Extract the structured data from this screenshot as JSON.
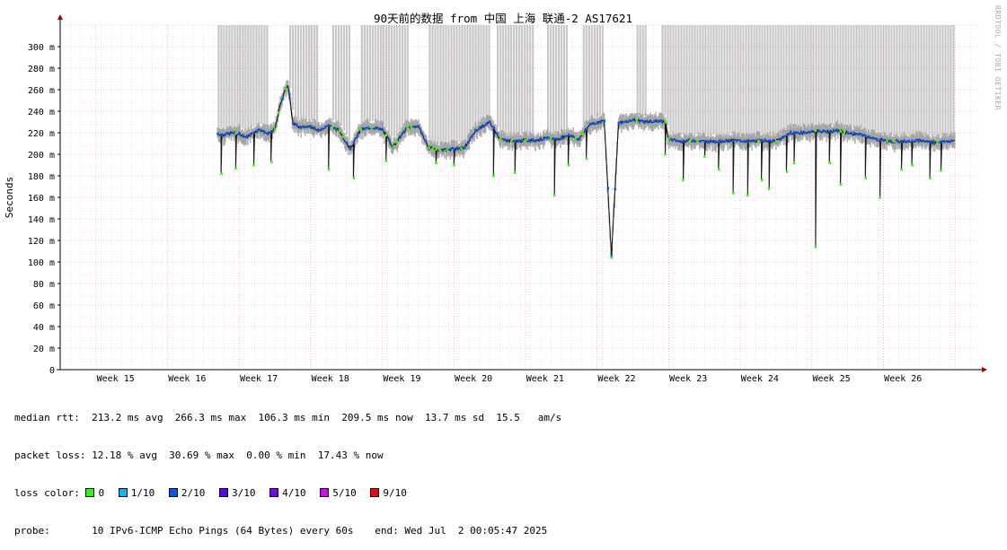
{
  "chart_data": {
    "type": "line",
    "title": "90天前的数据 from 中国 上海 联通-2 AS17621",
    "ylabel": "Seconds",
    "xlabel": "",
    "ylim": [
      0,
      320
    ],
    "y_ticks": [
      {
        "v": 0,
        "label": "0"
      },
      {
        "v": 20,
        "label": "20 m"
      },
      {
        "v": 40,
        "label": "40 m"
      },
      {
        "v": 60,
        "label": "60 m"
      },
      {
        "v": 80,
        "label": "80 m"
      },
      {
        "v": 100,
        "label": "100 m"
      },
      {
        "v": 120,
        "label": "120 m"
      },
      {
        "v": 140,
        "label": "140 m"
      },
      {
        "v": 160,
        "label": "160 m"
      },
      {
        "v": 180,
        "label": "180 m"
      },
      {
        "v": 200,
        "label": "200 m"
      },
      {
        "v": 220,
        "label": "220 m"
      },
      {
        "v": 240,
        "label": "240 m"
      },
      {
        "v": 260,
        "label": "260 m"
      },
      {
        "v": 280,
        "label": "280 m"
      },
      {
        "v": 300,
        "label": "300 m"
      }
    ],
    "x_ticks": [
      "Week 15",
      "Week 16",
      "Week 17",
      "Week 18",
      "Week 19",
      "Week 20",
      "Week 21",
      "Week 22",
      "Week 23",
      "Week 24",
      "Week 25",
      "Week 26"
    ],
    "grid": true,
    "data_start_week": 16.7,
    "series": [
      {
        "name": "median rtt",
        "points": [
          [
            16.7,
            219
          ],
          [
            16.78,
            218
          ],
          [
            16.9,
            220
          ],
          [
            17.0,
            219
          ],
          [
            17.1,
            216
          ],
          [
            17.2,
            220
          ],
          [
            17.28,
            223
          ],
          [
            17.4,
            219
          ],
          [
            17.5,
            223
          ],
          [
            17.58,
            248
          ],
          [
            17.68,
            266
          ],
          [
            17.75,
            229
          ],
          [
            17.85,
            225
          ],
          [
            18.0,
            226
          ],
          [
            18.1,
            222
          ],
          [
            18.25,
            227
          ],
          [
            18.4,
            222
          ],
          [
            18.55,
            205
          ],
          [
            18.7,
            223
          ],
          [
            18.85,
            225
          ],
          [
            19.0,
            223
          ],
          [
            19.15,
            207
          ],
          [
            19.35,
            225
          ],
          [
            19.5,
            226
          ],
          [
            19.65,
            206
          ],
          [
            19.8,
            204
          ],
          [
            20.0,
            205
          ],
          [
            20.15,
            206
          ],
          [
            20.3,
            222
          ],
          [
            20.5,
            230
          ],
          [
            20.65,
            214
          ],
          [
            20.85,
            212
          ],
          [
            21.0,
            213
          ],
          [
            21.15,
            213
          ],
          [
            21.3,
            215
          ],
          [
            21.45,
            214
          ],
          [
            21.6,
            218
          ],
          [
            21.75,
            214
          ],
          [
            21.9,
            228
          ],
          [
            22.1,
            231
          ],
          [
            22.2,
            106
          ],
          [
            22.3,
            229
          ],
          [
            22.5,
            232
          ],
          [
            22.7,
            230
          ],
          [
            22.85,
            231
          ],
          [
            22.95,
            230
          ],
          [
            23.0,
            214
          ],
          [
            23.15,
            212
          ],
          [
            23.3,
            213
          ],
          [
            23.5,
            212
          ],
          [
            23.7,
            212
          ],
          [
            23.9,
            213
          ],
          [
            24.1,
            212
          ],
          [
            24.3,
            213
          ],
          [
            24.5,
            212
          ],
          [
            24.7,
            220
          ],
          [
            24.9,
            220
          ],
          [
            25.05,
            222
          ],
          [
            25.2,
            221
          ],
          [
            25.35,
            222
          ],
          [
            25.5,
            220
          ],
          [
            25.7,
            218
          ],
          [
            25.9,
            214
          ],
          [
            26.1,
            212
          ],
          [
            26.3,
            212
          ],
          [
            26.5,
            213
          ],
          [
            26.7,
            211
          ],
          [
            26.9,
            212
          ],
          [
            27.0,
            213
          ]
        ]
      }
    ],
    "drops": [
      [
        16.75,
        182
      ],
      [
        16.95,
        187
      ],
      [
        17.2,
        190
      ],
      [
        17.45,
        193
      ],
      [
        18.25,
        186
      ],
      [
        18.6,
        178
      ],
      [
        19.05,
        194
      ],
      [
        19.75,
        192
      ],
      [
        20.0,
        190
      ],
      [
        20.55,
        180
      ],
      [
        20.85,
        183
      ],
      [
        21.4,
        162
      ],
      [
        21.6,
        190
      ],
      [
        21.85,
        196
      ],
      [
        22.2,
        104
      ],
      [
        22.95,
        200
      ],
      [
        23.2,
        176
      ],
      [
        23.5,
        198
      ],
      [
        23.7,
        186
      ],
      [
        23.9,
        164
      ],
      [
        24.1,
        162
      ],
      [
        24.3,
        176
      ],
      [
        24.4,
        168
      ],
      [
        24.65,
        184
      ],
      [
        24.75,
        192
      ],
      [
        25.05,
        114
      ],
      [
        25.25,
        192
      ],
      [
        25.4,
        172
      ],
      [
        25.75,
        178
      ],
      [
        25.95,
        160
      ],
      [
        26.25,
        186
      ],
      [
        26.4,
        190
      ],
      [
        26.65,
        178
      ],
      [
        26.8,
        185
      ]
    ],
    "loss_bands": [
      [
        16.7,
        17.4
      ],
      [
        17.7,
        18.1
      ],
      [
        18.3,
        18.55
      ],
      [
        18.7,
        19.35
      ],
      [
        19.65,
        20.5
      ],
      [
        20.6,
        21.1
      ],
      [
        21.3,
        21.6
      ],
      [
        21.8,
        22.1
      ],
      [
        22.55,
        22.7
      ],
      [
        22.9,
        27.0
      ]
    ],
    "loss_colors": [
      {
        "label": "0",
        "color": "#26ff00"
      },
      {
        "label": "1/10",
        "color": "#00b8ff"
      },
      {
        "label": "2/10",
        "color": "#0059ff"
      },
      {
        "label": "3/10",
        "color": "#5e00ff"
      },
      {
        "label": "4/10",
        "color": "#7e00ff"
      },
      {
        "label": "5/10",
        "color": "#dd00ff"
      },
      {
        "label": "9/10",
        "color": "#ff0000"
      }
    ]
  },
  "stats": {
    "median_rtt": "median rtt:  213.2 ms avg  266.3 ms max  106.3 ms min  209.5 ms now  13.7 ms sd  15.5   am/s",
    "packet_loss": "packet loss: 12.18 % avg  30.69 % max  0.00 % min  17.43 % now",
    "loss_color_label": "loss color:",
    "probe": "probe:       10 IPv6-ICMP Echo Pings (64 Bytes) every 60s",
    "end": "end: Wed Jul  2 00:05:47 2025"
  },
  "watermark": "RRDTOOL / TOBI OETIKER",
  "colors": {
    "median_line": "#1a1a1a",
    "smoke": "#9a9a9a",
    "loss_band": "#c8c8c8",
    "grid_minor": "#eeccd0",
    "grid_major": "#e8a0a0",
    "axis": "#000000",
    "arrow": "#a00000"
  }
}
